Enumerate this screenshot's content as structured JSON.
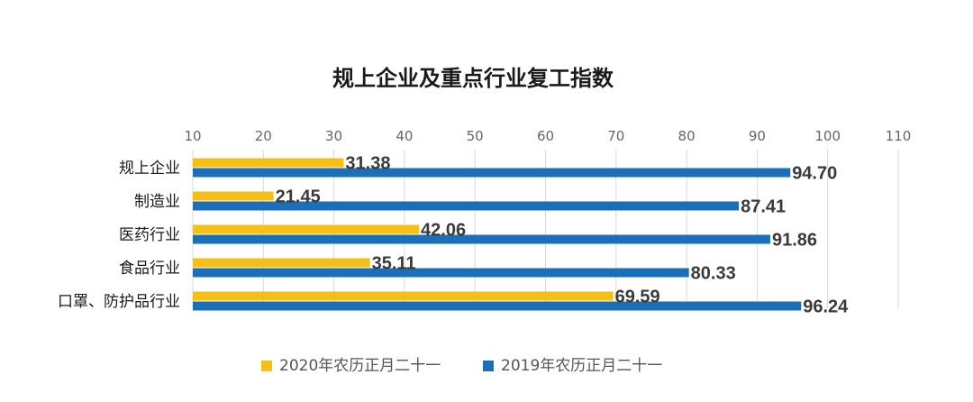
{
  "chart_data": {
    "type": "bar",
    "orientation": "horizontal",
    "title": "规上企业及重点行业复工指数",
    "categories": [
      "规上企业",
      "制造业",
      "医药行业",
      "食品行业",
      "口罩、防护品行业"
    ],
    "series": [
      {
        "name": "2020年农历正月二十一",
        "color": "#f5bf16",
        "values": [
          31.38,
          21.45,
          42.06,
          35.11,
          69.59
        ]
      },
      {
        "name": "2019年农历正月二十一",
        "color": "#1a6fb8",
        "values": [
          94.7,
          87.41,
          91.86,
          80.33,
          96.24
        ]
      }
    ],
    "xlim": [
      10,
      110
    ],
    "xticks": [
      10,
      20,
      30,
      40,
      50,
      60,
      70,
      80,
      90,
      100,
      110
    ],
    "x_axis_position": "top",
    "grid": true,
    "legend_position": "bottom"
  }
}
